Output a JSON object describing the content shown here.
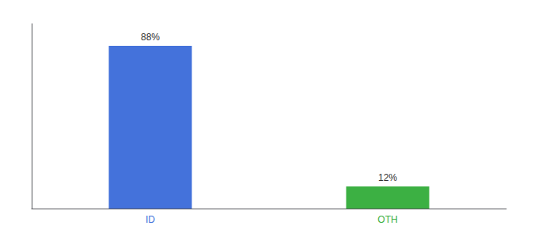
{
  "chart_data": {
    "type": "bar",
    "categories": [
      "ID",
      "OTH"
    ],
    "values": [
      88,
      12
    ],
    "colors": [
      "#4472db",
      "#3cb043"
    ],
    "data_labels": true,
    "value_labels": [
      "88%",
      "12%"
    ],
    "ylim": [
      0,
      100
    ],
    "tick_labels": "x",
    "grid": false
  }
}
